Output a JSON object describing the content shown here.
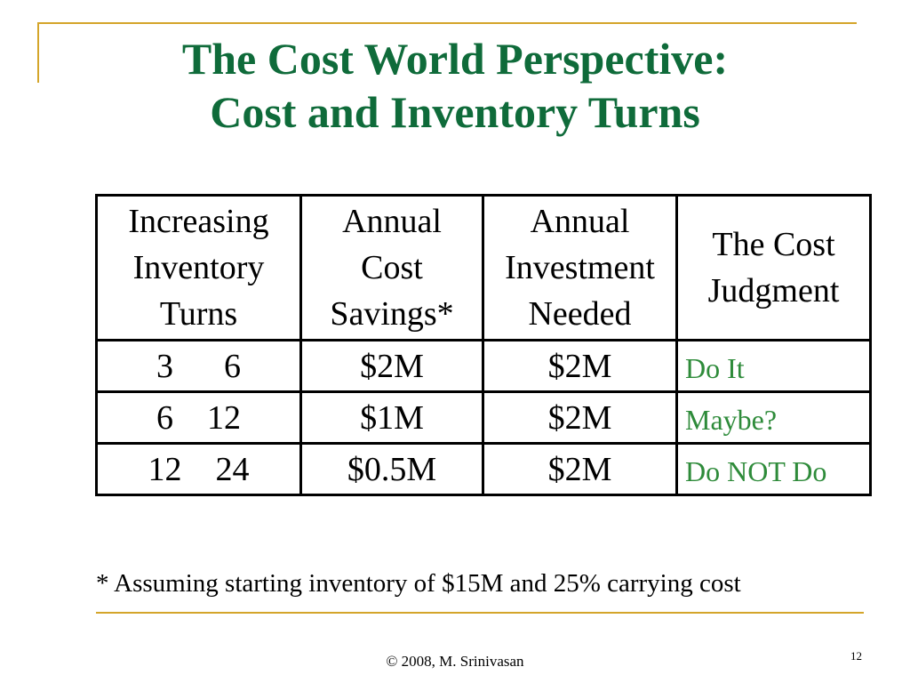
{
  "title": {
    "line1": "The Cost World Perspective:",
    "line2": "Cost and Inventory Turns"
  },
  "table": {
    "headers": [
      [
        "Increasing",
        "Inventory",
        "Turns"
      ],
      [
        "Annual",
        "Cost",
        "Savings*"
      ],
      [
        "Annual",
        "Investment",
        "Needed"
      ],
      [
        "The Cost",
        "Judgment"
      ]
    ],
    "rows": [
      {
        "turns": "3      6",
        "savings": "$2M",
        "investment": "$2M",
        "judgment": "Do It"
      },
      {
        "turns": "6    12",
        "savings": "$1M",
        "investment": "$2M",
        "judgment": "Maybe?"
      },
      {
        "turns": "12    24",
        "savings": "$0.5M",
        "investment": "$2M",
        "judgment": "Do NOT Do"
      }
    ]
  },
  "footnote": "* Assuming starting inventory of $15M and 25% carrying cost",
  "footer": {
    "copyright": "©  2008,  M. Srinivasan",
    "page_number": "12"
  },
  "colors": {
    "title": "#0f6b3a",
    "judgment": "#2e8b3a",
    "accent_rule": "#d4a52a"
  }
}
